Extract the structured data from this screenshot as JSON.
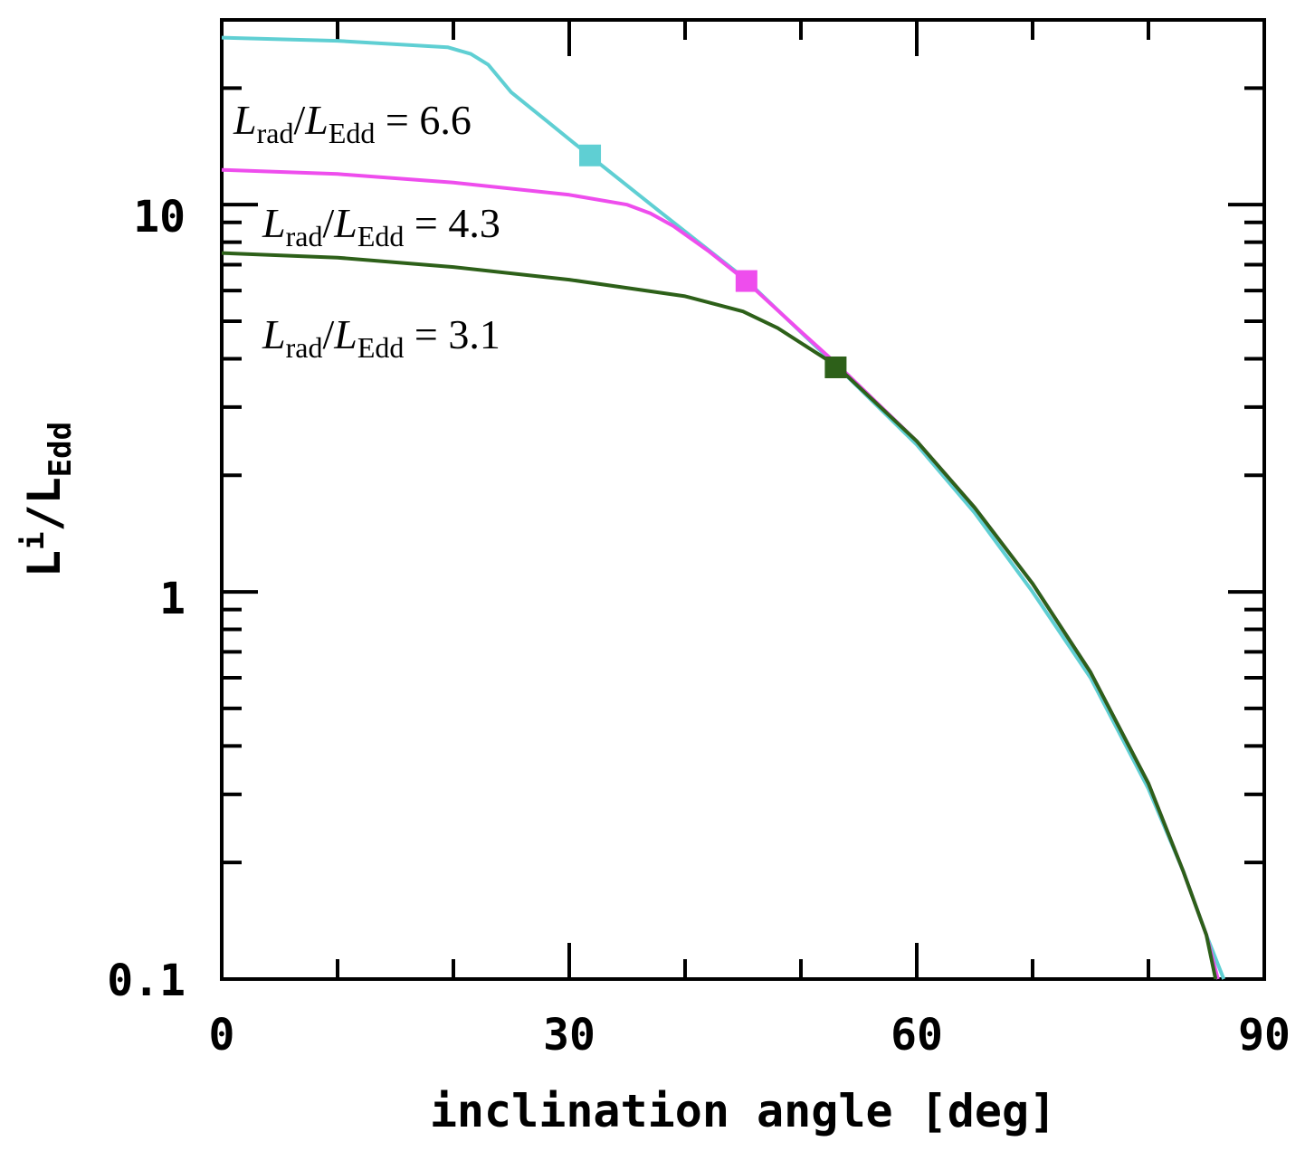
{
  "chart_data": {
    "type": "line",
    "xlabel": "inclination angle [deg]",
    "ylabel": "Li/LEdd",
    "ylabel_main": "L",
    "ylabel_sup": "i",
    "ylabel_sub": "Edd",
    "xlim": [
      0,
      90
    ],
    "ylim": [
      0.1,
      30
    ],
    "yscale": "log",
    "x_ticks": [
      0,
      30,
      60,
      90
    ],
    "x_tick_labels": [
      "0",
      "30",
      "60",
      "90"
    ],
    "y_ticks": [
      0.1,
      1,
      10
    ],
    "y_tick_labels": [
      "0.1",
      "1",
      "10"
    ],
    "series": [
      {
        "name": "Lrad/LEdd = 6.6",
        "color": "#5fcfd3",
        "x": [
          0,
          10,
          19.5,
          21.5,
          23,
          25,
          28,
          32,
          38,
          45,
          53,
          60,
          65,
          70,
          75,
          80,
          83,
          85,
          86.5
        ],
        "y": [
          27,
          26.5,
          25.5,
          24.5,
          23,
          19.5,
          16.5,
          13.2,
          9.5,
          6.5,
          3.85,
          2.4,
          1.6,
          1.0,
          0.6,
          0.31,
          0.19,
          0.13,
          0.098
        ],
        "marker": {
          "x": 31.8,
          "y": 13.4
        }
      },
      {
        "name": "Lrad/LEdd = 4.3",
        "color": "#ee4ded",
        "x": [
          0,
          10,
          20,
          30,
          35,
          37,
          39,
          42,
          45,
          50,
          53,
          60,
          65,
          70,
          75,
          80,
          83,
          85,
          86
        ],
        "y": [
          12.3,
          12.0,
          11.4,
          10.6,
          10.0,
          9.5,
          8.8,
          7.6,
          6.45,
          4.7,
          3.9,
          2.45,
          1.65,
          1.05,
          0.62,
          0.32,
          0.19,
          0.13,
          0.1
        ],
        "marker": {
          "x": 45.3,
          "y": 6.35
        }
      },
      {
        "name": "Lrad/LEdd = 3.1",
        "color": "#2d6019",
        "x": [
          0,
          10,
          20,
          30,
          40,
          45,
          48,
          53,
          60,
          65,
          70,
          75,
          80,
          83,
          85,
          85.8
        ],
        "y": [
          7.5,
          7.3,
          6.9,
          6.4,
          5.8,
          5.3,
          4.8,
          3.85,
          2.45,
          1.65,
          1.05,
          0.62,
          0.32,
          0.19,
          0.13,
          0.1
        ],
        "marker": {
          "x": 53.0,
          "y": 3.8
        }
      }
    ],
    "annotations": [
      {
        "label_L": "L",
        "sub1": "rad",
        "slash": "/",
        "sub2": "Edd",
        "value": " = 6.6"
      },
      {
        "label_L": "L",
        "sub1": "rad",
        "slash": "/",
        "sub2": "Edd",
        "value": " = 4.3"
      },
      {
        "label_L": "L",
        "sub1": "rad",
        "slash": "/",
        "sub2": "Edd",
        "value": " = 3.1"
      }
    ]
  }
}
